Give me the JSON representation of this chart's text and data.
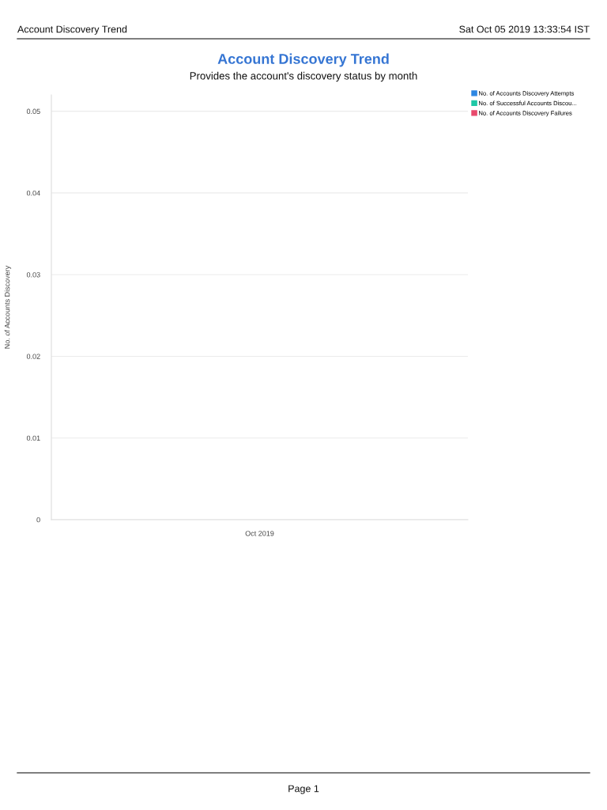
{
  "chart_data": {
    "type": "bar",
    "title": "Account Discovery Trend",
    "subtitle": "Provides the account's discovery status by month",
    "ylabel": "No. of Accounts Discovery",
    "categories": [
      "Oct 2019"
    ],
    "series": [
      {
        "name": "No. of Accounts Discovery Attempts",
        "color": "#2d87e2",
        "values": [
          0
        ]
      },
      {
        "name": "No. of Successful Accounts Discou...",
        "color": "#1fc8a6",
        "values": [
          0
        ]
      },
      {
        "name": "No. of Accounts Discovery Failures",
        "color": "#e8496c",
        "values": [
          0
        ]
      }
    ],
    "ylim": [
      0,
      0.052
    ],
    "yticks": [
      0,
      0.01,
      0.02,
      0.03,
      0.04,
      0.05
    ],
    "grid": "y",
    "legend": "top right",
    "annotations": [
      "Account Discovery Trend",
      "Sat Oct 05 2019 13:33:54 IST",
      "Page 1"
    ]
  }
}
